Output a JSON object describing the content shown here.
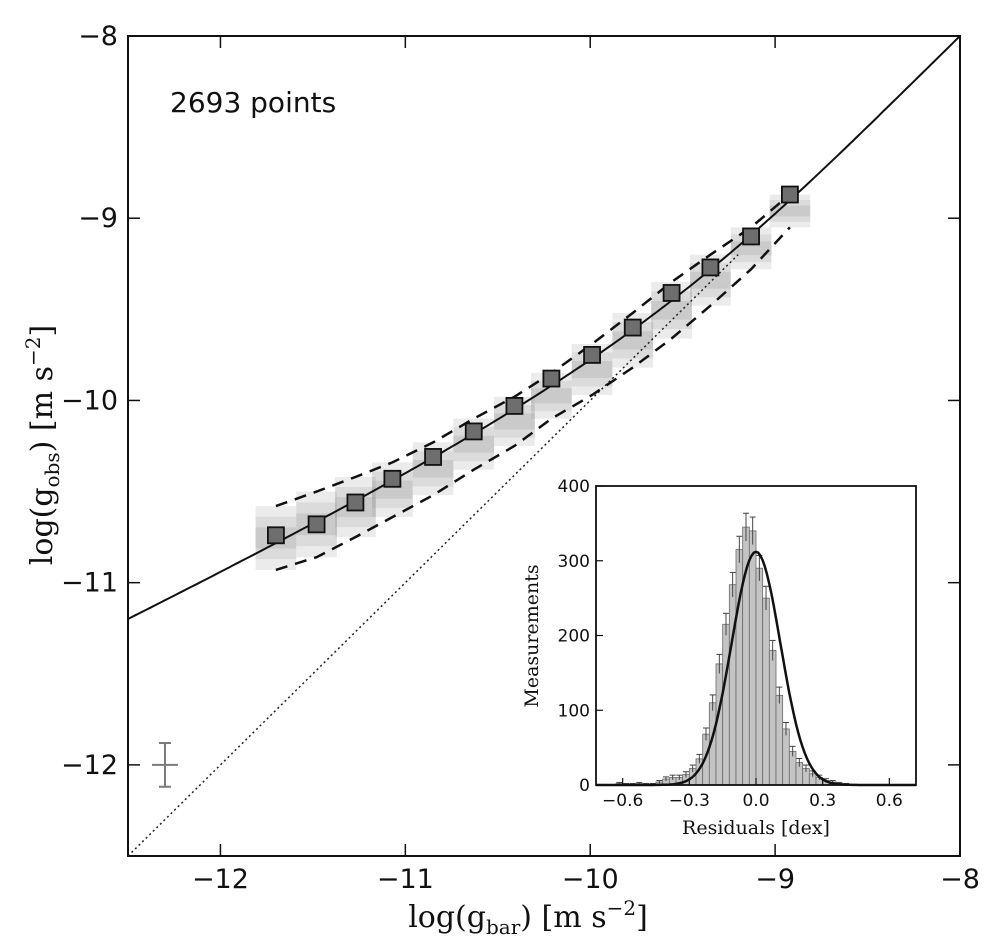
{
  "chart_data": [
    {
      "type": "scatter",
      "annotation": "2693 points",
      "xlabel_main": "log(g",
      "xlabel_sub": "bar",
      "xlabel_rest": ") [m s",
      "xlabel_sup": "−2",
      "xlabel_end": "]",
      "ylabel_main": "log(g",
      "ylabel_sub": "obs",
      "ylabel_rest": ") [m s",
      "ylabel_sup": "−2",
      "ylabel_end": "]",
      "xlim": [
        -12.5,
        -8
      ],
      "ylim": [
        -12.5,
        -8
      ],
      "xticks": [
        -12,
        -11,
        -10,
        -9,
        -8
      ],
      "xtick_labels": [
        "−12",
        "−11",
        "−10",
        "−9",
        "−8"
      ],
      "yticks": [
        -12,
        -11,
        -10,
        -9,
        -8
      ],
      "ytick_labels": [
        "−12",
        "−11",
        "−10",
        "−9",
        "−8"
      ],
      "colors": {
        "square_fill": "#6e6e6e",
        "density_dark": "#8a8a8a",
        "density_light": "#e6e6e6",
        "error_cross": "#7a7a7a"
      },
      "binned_means": {
        "x": [
          -11.7,
          -11.48,
          -11.27,
          -11.07,
          -10.85,
          -10.63,
          -10.41,
          -10.21,
          -9.99,
          -9.77,
          -9.56,
          -9.35,
          -9.13,
          -8.92
        ],
        "y": [
          -10.74,
          -10.68,
          -10.56,
          -10.43,
          -10.31,
          -10.17,
          -10.03,
          -9.88,
          -9.75,
          -9.6,
          -9.41,
          -9.27,
          -9.1,
          -8.87
        ]
      },
      "scatter_band": {
        "x": [
          -11.7,
          -11.48,
          -11.27,
          -11.07,
          -10.85,
          -10.63,
          -10.41,
          -10.21,
          -9.99,
          -9.77,
          -9.56,
          -9.35,
          -9.13,
          -8.92
        ],
        "upper": [
          -10.58,
          -10.5,
          -10.42,
          -10.34,
          -10.23,
          -10.1,
          -9.98,
          -9.85,
          -9.69,
          -9.52,
          -9.35,
          -9.2,
          -9.05,
          -8.87
        ],
        "lower": [
          -10.93,
          -10.86,
          -10.75,
          -10.64,
          -10.52,
          -10.38,
          -10.25,
          -10.1,
          -9.97,
          -9.82,
          -9.66,
          -9.48,
          -9.28,
          -9.05
        ]
      },
      "typical_error": {
        "x": -12.3,
        "y": -12.0,
        "dx": 0.07,
        "dy": 0.12
      }
    },
    {
      "type": "bar",
      "xlabel": "Residuals [dex]",
      "ylabel": "Measurements",
      "xlim": [
        -0.72,
        0.72
      ],
      "ylim": [
        0,
        400
      ],
      "xticks": [
        -0.6,
        -0.3,
        0.0,
        0.3,
        0.6
      ],
      "xtick_labels": [
        "−0.6",
        "−0.3",
        "0.0",
        "0.3",
        "0.6"
      ],
      "yticks": [
        0,
        100,
        200,
        300,
        400
      ],
      "ytick_labels": [
        "0",
        "100",
        "200",
        "300",
        "400"
      ],
      "bin_width": 0.03,
      "bin_centers": [
        -0.615,
        -0.585,
        -0.555,
        -0.525,
        -0.495,
        -0.465,
        -0.435,
        -0.405,
        -0.375,
        -0.345,
        -0.315,
        -0.285,
        -0.255,
        -0.225,
        -0.195,
        -0.165,
        -0.135,
        -0.105,
        -0.075,
        -0.045,
        -0.015,
        0.015,
        0.045,
        0.075,
        0.105,
        0.135,
        0.165,
        0.195,
        0.225,
        0.255,
        0.285,
        0.315,
        0.345,
        0.375,
        0.405
      ],
      "counts": [
        2,
        1,
        1,
        2,
        1,
        1,
        4,
        8,
        10,
        10,
        14,
        22,
        35,
        68,
        110,
        162,
        215,
        268,
        315,
        345,
        340,
        290,
        250,
        180,
        120,
        75,
        45,
        30,
        22,
        15,
        10,
        6,
        4,
        2,
        1
      ],
      "gaussian_peak": 312,
      "gaussian_center": 0.0,
      "gaussian_sigma": 0.11,
      "colors": {
        "bar_fill": "#c4c4c4",
        "bar_edge": "#6a6a6a"
      }
    }
  ]
}
